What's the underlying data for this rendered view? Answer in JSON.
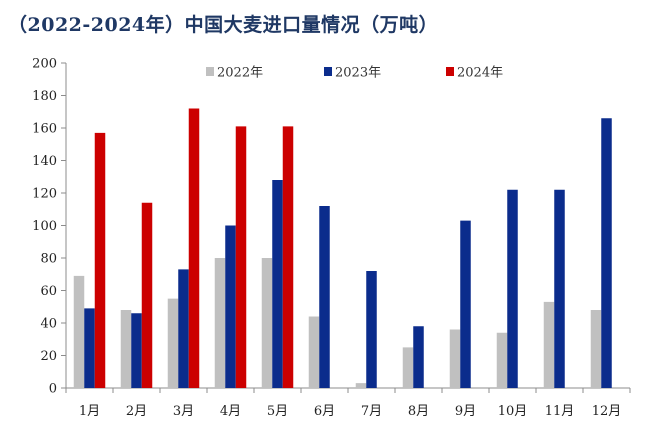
{
  "title": "（2022-2024年）中国大麦进口量情况（万吨）",
  "chart_data": {
    "type": "bar",
    "title": "（2022-2024年）中国大麦进口量情况（万吨）",
    "xlabel": "",
    "ylabel": "",
    "categories": [
      "1月",
      "2月",
      "3月",
      "4月",
      "5月",
      "6月",
      "7月",
      "8月",
      "9月",
      "10月",
      "11月",
      "12月"
    ],
    "series": [
      {
        "name": "2022年",
        "color": "#c0c0c0",
        "values": [
          69,
          48,
          55,
          80,
          80,
          44,
          3,
          25,
          36,
          34,
          53,
          48
        ]
      },
      {
        "name": "2023年",
        "color": "#0b2c8c",
        "values": [
          49,
          46,
          73,
          100,
          128,
          112,
          72,
          38,
          103,
          122,
          122,
          166
        ]
      },
      {
        "name": "2024年",
        "color": "#cc0000",
        "values": [
          157,
          114,
          172,
          161,
          161,
          null,
          null,
          null,
          null,
          null,
          null,
          null
        ]
      }
    ],
    "ylim": [
      0,
      200
    ],
    "yticks": [
      0,
      20,
      40,
      60,
      80,
      100,
      120,
      140,
      160,
      180,
      200
    ],
    "grid": false,
    "legend": "top-center"
  }
}
